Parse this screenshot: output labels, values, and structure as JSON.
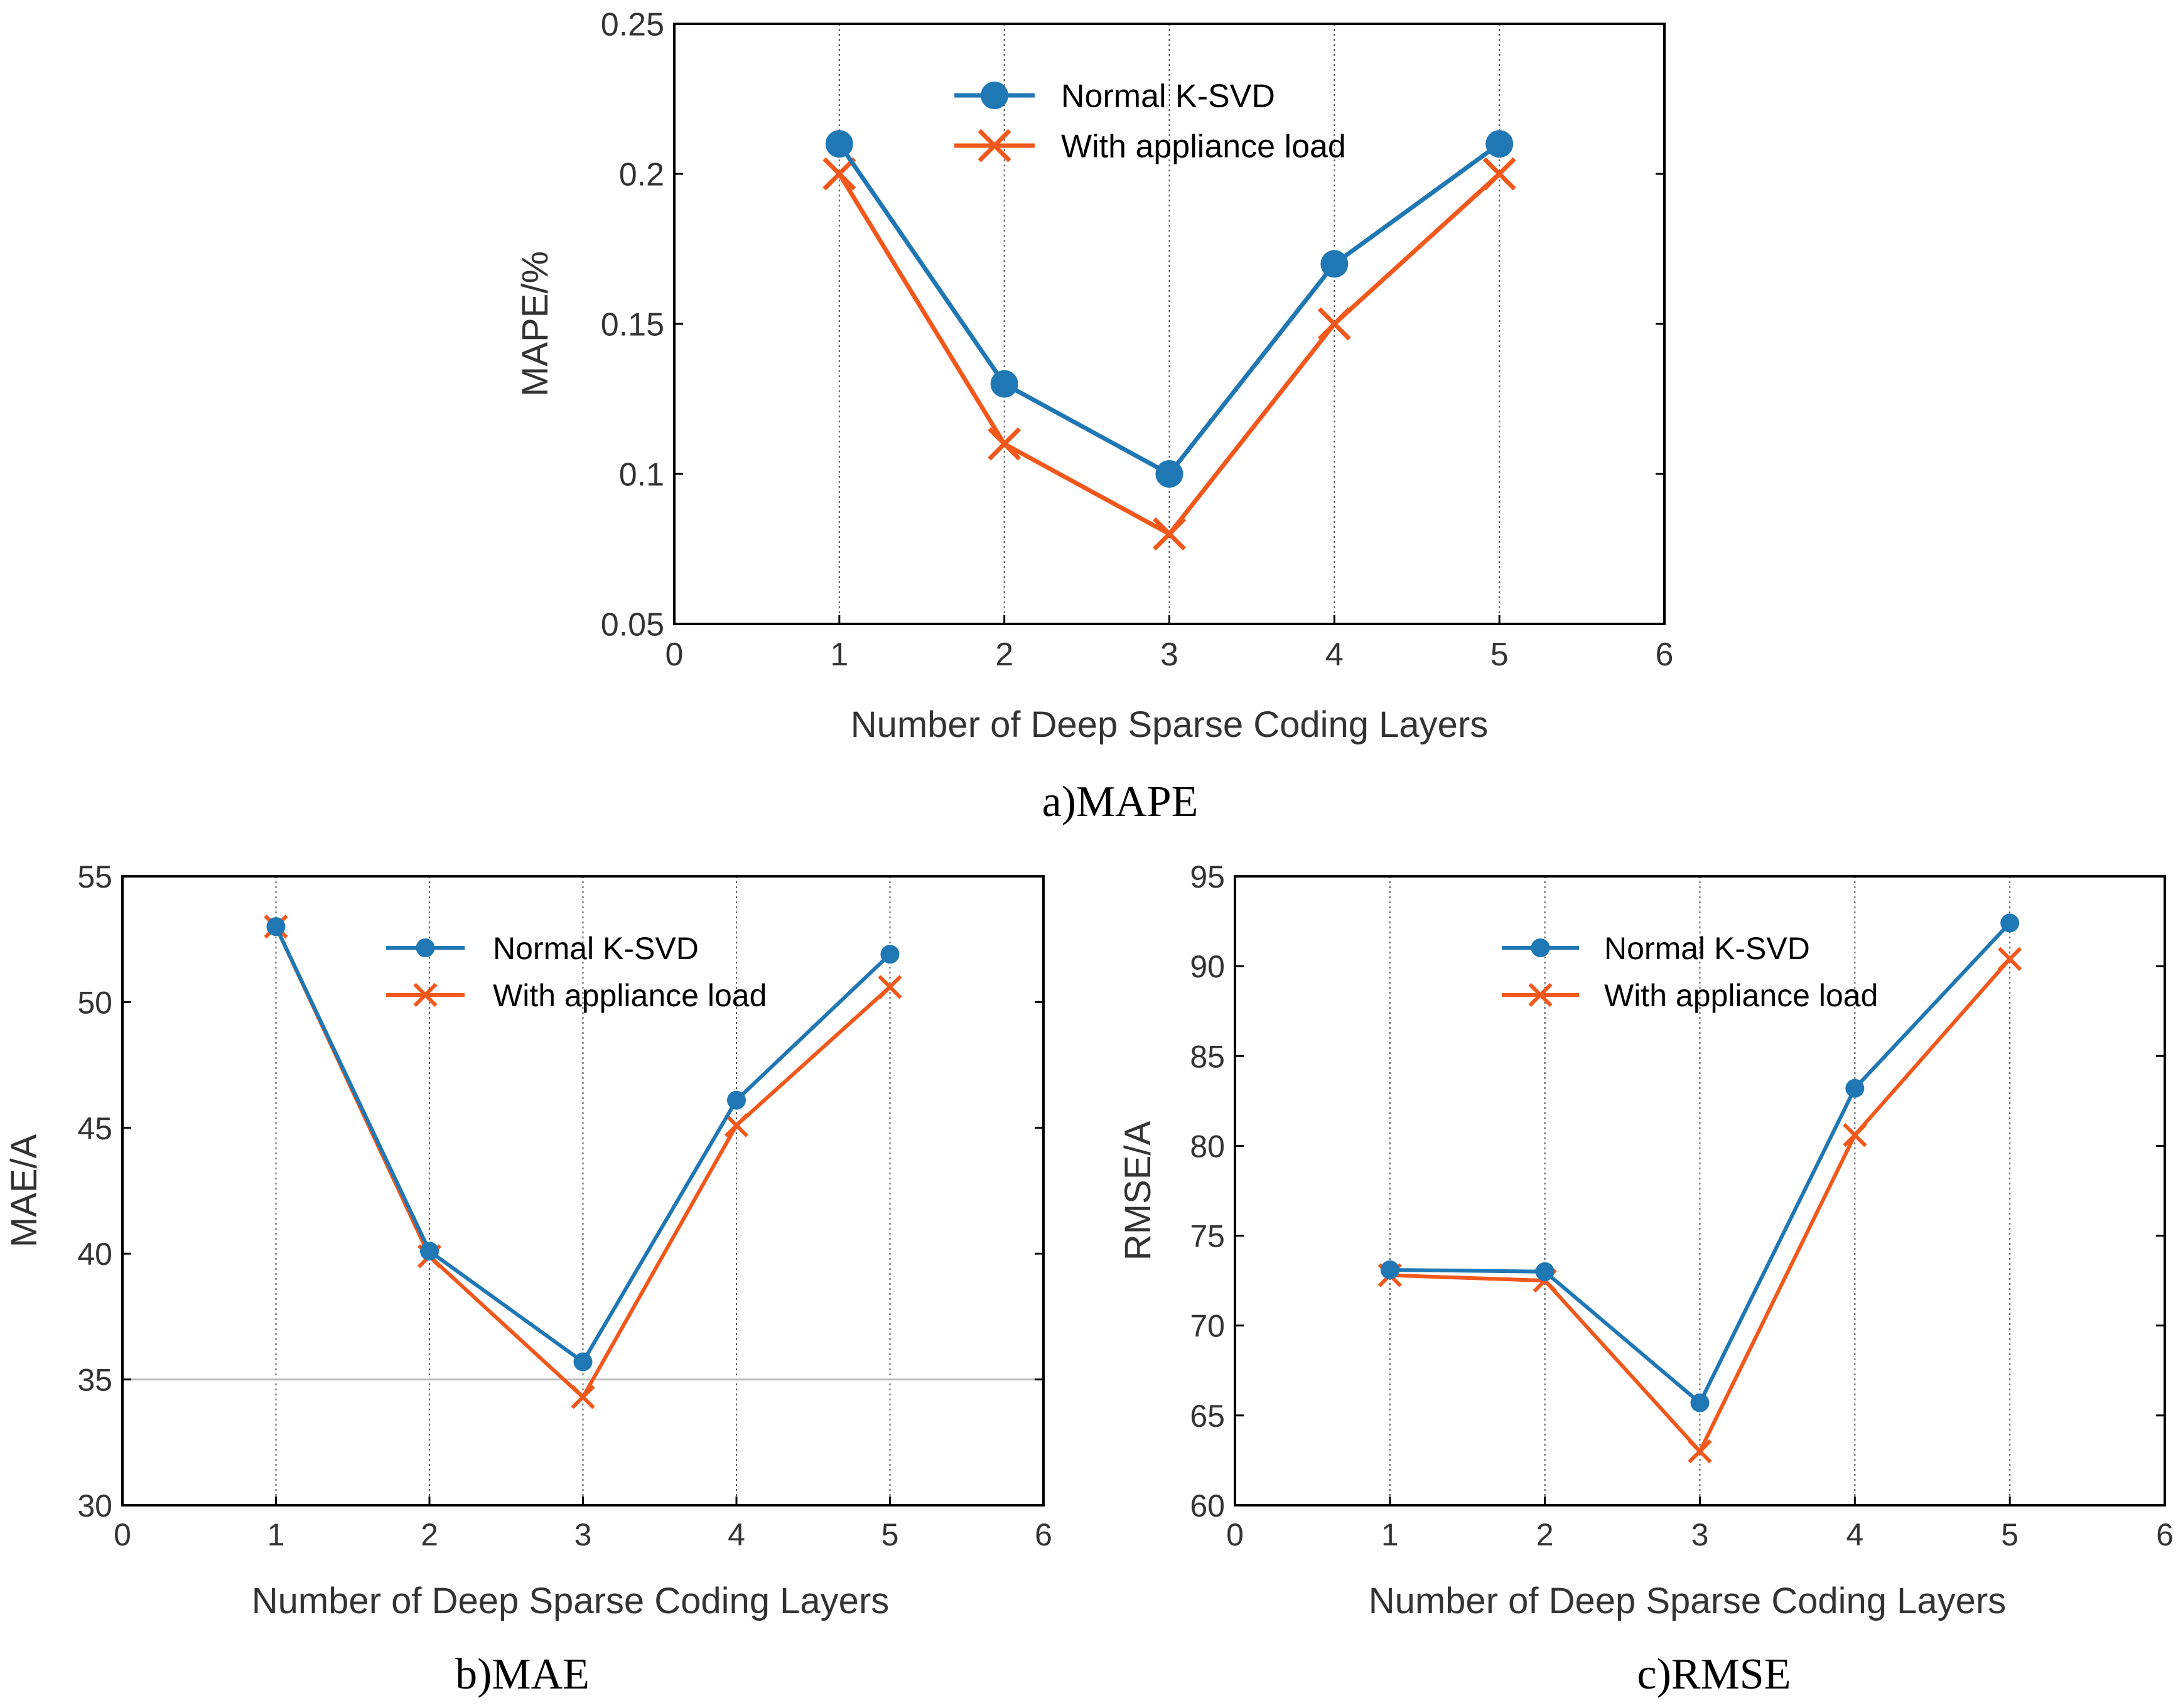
{
  "colors": {
    "series1": "#1f77b4",
    "series2": "#f2581b",
    "frame": "#000000",
    "text": "#333333"
  },
  "chart_data": [
    {
      "type": "line",
      "caption": "a)MAPE",
      "xlabel": "Number of Deep Sparse Coding Layers",
      "ylabel": "MAPE/%",
      "xlim": [
        0,
        6
      ],
      "ylim": [
        0.05,
        0.25
      ],
      "xticks": [
        "0",
        "1",
        "2",
        "3",
        "4",
        "5",
        "6"
      ],
      "yticks": [
        "0.05",
        "0.1",
        "0.15",
        "0.2",
        "0.25"
      ],
      "x": [
        1,
        2,
        3,
        4,
        5
      ],
      "series": [
        {
          "name": "Normal K-SVD",
          "marker": "circle",
          "values": [
            0.21,
            0.13,
            0.1,
            0.17,
            0.21
          ]
        },
        {
          "name": "With appliance load",
          "marker": "x",
          "values": [
            0.2,
            0.11,
            0.08,
            0.15,
            0.2
          ]
        }
      ],
      "legend": "top-center",
      "grid": "vertical dotted lines at x = 1..5"
    },
    {
      "type": "line",
      "caption": "b)MAE",
      "xlabel": "Number of Deep Sparse Coding Layers",
      "ylabel": "MAE/A",
      "xlim": [
        0,
        6
      ],
      "ylim": [
        30,
        55
      ],
      "xticks": [
        "0",
        "1",
        "2",
        "3",
        "4",
        "5",
        "6"
      ],
      "yticks": [
        "30",
        "35",
        "40",
        "45",
        "50",
        "55"
      ],
      "x": [
        1,
        2,
        3,
        4,
        5
      ],
      "series": [
        {
          "name": "Normal K-SVD",
          "marker": "circle",
          "values": [
            53.0,
            40.1,
            35.7,
            46.1,
            51.9
          ]
        },
        {
          "name": "With appliance load",
          "marker": "x",
          "values": [
            53.0,
            39.9,
            34.3,
            45.1,
            50.6
          ]
        }
      ],
      "legend": "top-center",
      "grid": "vertical dotted lines at x = 1..5, horizontal line at y = 35"
    },
    {
      "type": "line",
      "caption": "c)RMSE",
      "xlabel": "Number of Deep Sparse Coding Layers",
      "ylabel": "RMSE/A",
      "xlim": [
        0,
        6
      ],
      "ylim": [
        60,
        95
      ],
      "xticks": [
        "0",
        "1",
        "2",
        "3",
        "4",
        "5",
        "6"
      ],
      "yticks": [
        "60",
        "65",
        "70",
        "75",
        "80",
        "85",
        "90",
        "95"
      ],
      "x": [
        1,
        2,
        3,
        4,
        5
      ],
      "series": [
        {
          "name": "Normal K-SVD",
          "marker": "circle",
          "values": [
            73.1,
            73.0,
            65.7,
            83.2,
            92.4
          ]
        },
        {
          "name": "With appliance load",
          "marker": "x",
          "values": [
            72.8,
            72.5,
            63.0,
            80.6,
            90.4
          ]
        }
      ],
      "legend": "top-center",
      "grid": "vertical dotted lines at x = 1..5"
    }
  ]
}
